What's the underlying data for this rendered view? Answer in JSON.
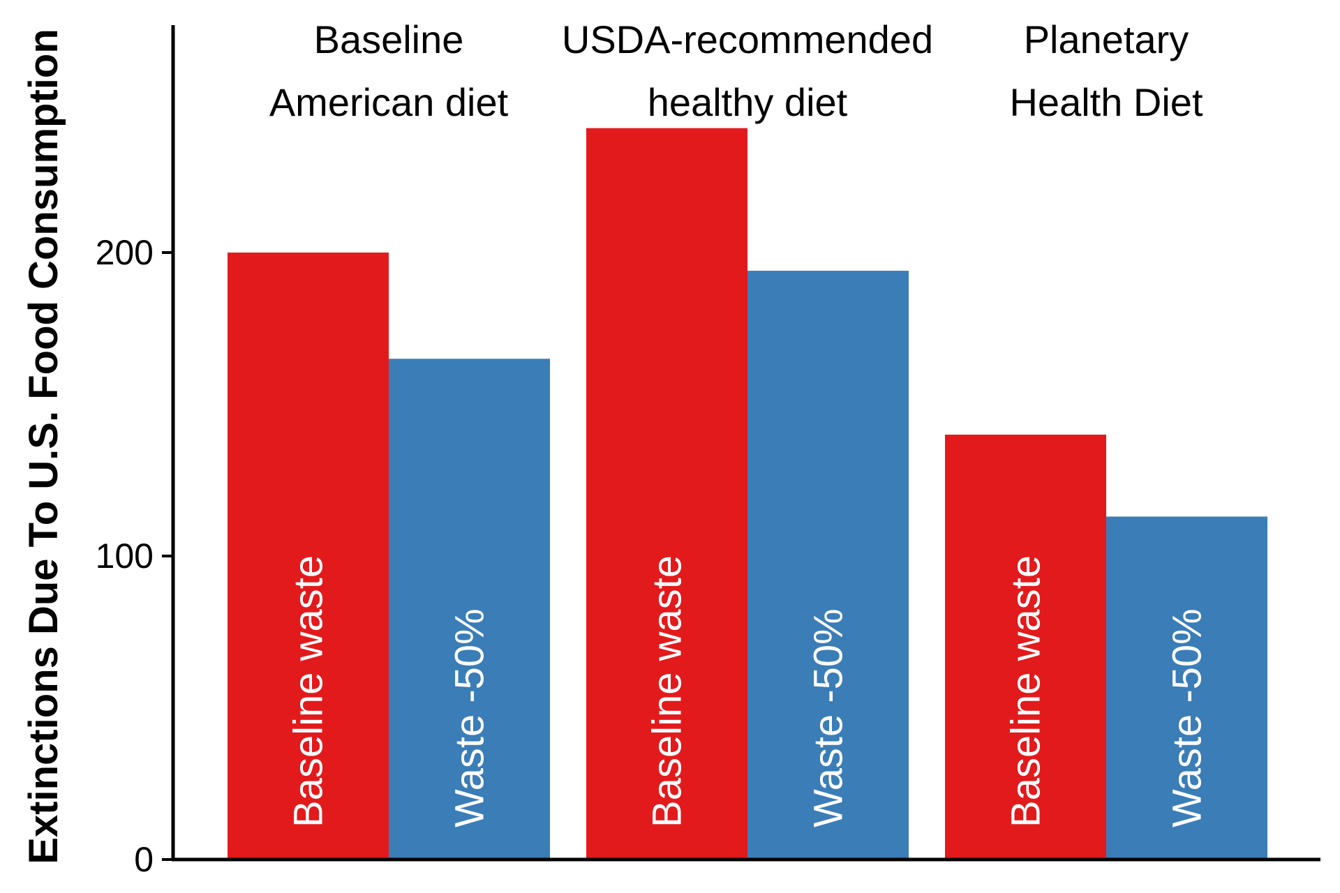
{
  "chart_data": {
    "type": "bar",
    "categories": [
      [
        "Baseline",
        "American diet"
      ],
      [
        "USDA-recommended",
        "healthy diet"
      ],
      [
        "Planetary",
        "Health Diet"
      ]
    ],
    "series": [
      {
        "name": "Baseline waste",
        "color": "#e31a1c",
        "values": [
          200,
          241,
          140
        ]
      },
      {
        "name": "Waste -50%",
        "color": "#3a7db7",
        "values": [
          165,
          194,
          113
        ]
      }
    ],
    "title": "",
    "xlabel": "",
    "ylabel": "Extinctions Due To U.S. Food Consumption",
    "yticks": [
      0,
      100,
      200
    ],
    "ylim": [
      0,
      272
    ],
    "grid": false,
    "legend": "labels inside bars"
  }
}
